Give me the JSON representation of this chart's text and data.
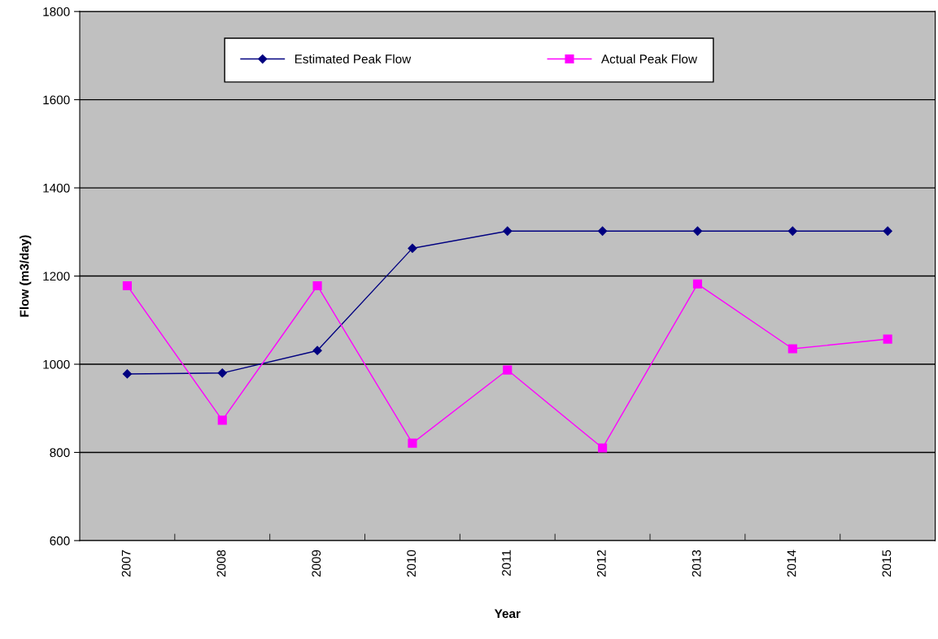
{
  "chart_data": {
    "type": "line",
    "xlabel": "Year",
    "ylabel": "Flow (m3/day)",
    "categories": [
      "2007",
      "2008",
      "2009",
      "2010",
      "2011",
      "2012",
      "2013",
      "2014",
      "2015"
    ],
    "series": [
      {
        "name": "Estimated Peak Flow",
        "color": "#000080",
        "marker": "diamond",
        "values": [
          978,
          980,
          1031,
          1263,
          1302,
          1302,
          1302,
          1302,
          1302
        ]
      },
      {
        "name": "Actual Peak Flow",
        "color": "#ff00ff",
        "marker": "square",
        "values": [
          1178,
          873,
          1178,
          821,
          987,
          810,
          1182,
          1035,
          1057
        ]
      }
    ],
    "ylim": [
      600,
      1800
    ],
    "yticks": [
      600,
      800,
      1000,
      1200,
      1400,
      1600,
      1800
    ],
    "grid": "y",
    "legend": "top",
    "line_style": "solid"
  }
}
